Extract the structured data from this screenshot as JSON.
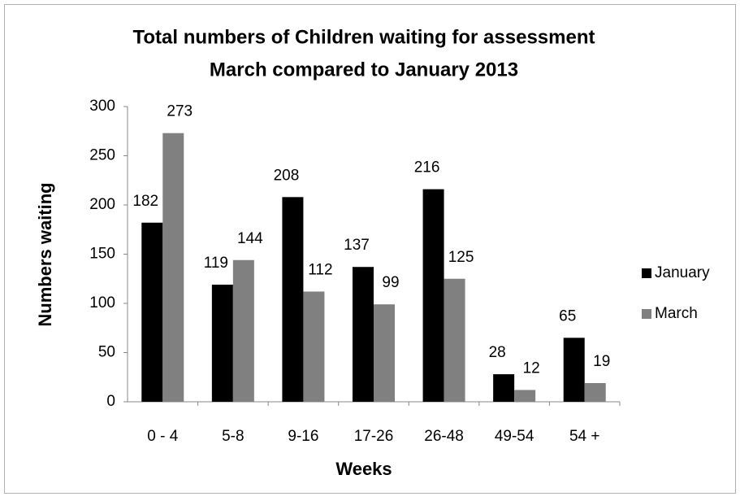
{
  "chart_data": {
    "type": "bar",
    "title": "Total numbers of Children waiting for assessment",
    "subtitle": "March compared to January 2013",
    "x_label": "Weeks",
    "y_label": "Numbers waiting",
    "categories": [
      "0 - 4",
      "5-8",
      "9-16",
      "17-26",
      "26-48",
      "49-54",
      "54 +"
    ],
    "series": [
      {
        "name": "January",
        "color": "#000000",
        "values": [
          182,
          119,
          208,
          137,
          216,
          28,
          65
        ]
      },
      {
        "name": "March",
        "color": "#808080",
        "values": [
          273,
          144,
          112,
          99,
          125,
          12,
          19
        ]
      }
    ],
    "ylim": [
      0,
      300
    ],
    "yticks": [
      0,
      50,
      100,
      150,
      200,
      250,
      300
    ],
    "grid": false,
    "legend": "right"
  }
}
